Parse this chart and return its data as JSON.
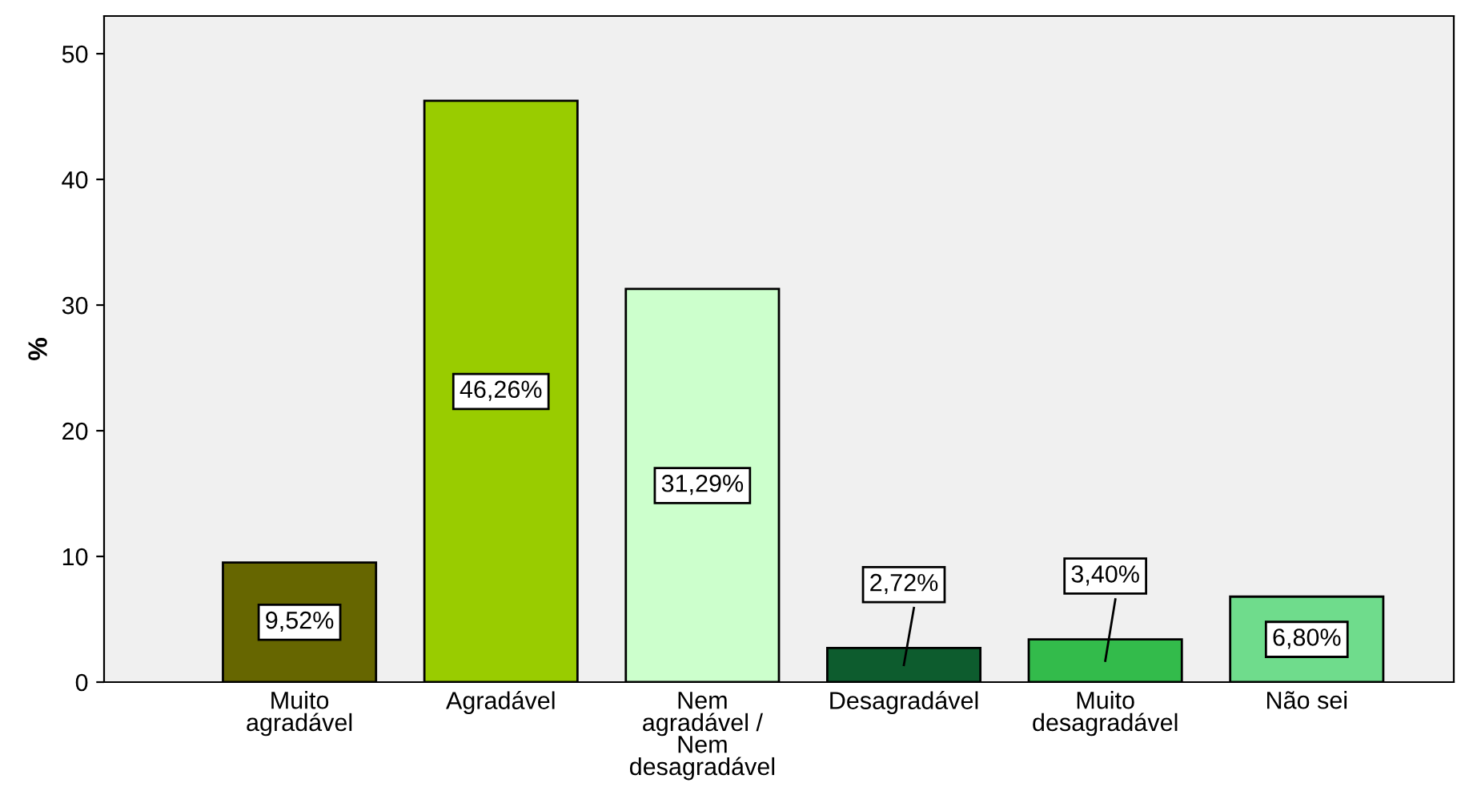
{
  "chart_data": {
    "type": "bar",
    "ylabel": "%",
    "categories": [
      "Muito\nagradável",
      "Agradável",
      "Nem\nagradável /\nNem\ndesagradável",
      "Desagradável",
      "Muito\ndesagradável",
      "Não sei"
    ],
    "values": [
      9.52,
      46.26,
      31.29,
      2.72,
      3.4,
      6.8
    ],
    "colors": [
      "#666600",
      "#99cc00",
      "#ccffcc",
      "#0d5c2e",
      "#33bb4b",
      "#6fdc8c"
    ],
    "value_labels": [
      "9,52%",
      "46,26%",
      "31,29%",
      "2,72%",
      "3,40%",
      "6,80%"
    ],
    "ylim": [
      0,
      53
    ],
    "yticks": [
      0,
      10,
      20,
      30,
      40,
      50
    ],
    "grid": false
  }
}
